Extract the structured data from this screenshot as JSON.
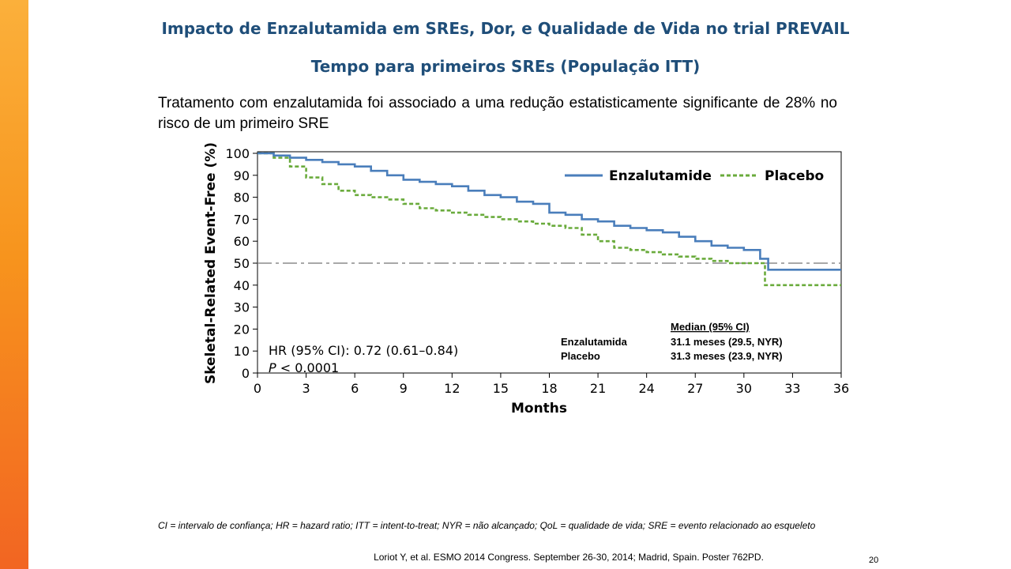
{
  "title": "Impacto de Enzalutamida em SREs, Dor, e Qualidade de Vida no trial PREVAIL",
  "subtitle": "Tempo para primeiros SREs  (População ITT)",
  "intro": "Tratamento com enzalutamida foi associado a uma redução estatisticamente significante de 28% no risco de um primeiro SRE",
  "footnote": "CI = intervalo de confiança; HR = hazard ratio; ITT = intent-to-treat; NYR = não alcançado; QoL = qualidade de vida; SRE = evento relacionado ao esqueleto",
  "citation": "Loriot Y, et al. ESMO 2014 Congress. September 26-30, 2014; Madrid, Spain. Poster 762PD.",
  "page_number": "20",
  "colors": {
    "accent_bar": "#f7941d",
    "title": "#1f4e79",
    "enzalutamide": "#4a7ebb",
    "placebo": "#6aab3c",
    "reference": "#8c8c8c"
  },
  "chart_data": {
    "type": "line",
    "xlabel": "Months",
    "ylabel": "Skeletal-Related Event-Free (%)",
    "xlim": [
      0,
      36
    ],
    "ylim": [
      0,
      100
    ],
    "xticks": [
      0,
      3,
      6,
      9,
      12,
      15,
      18,
      21,
      24,
      27,
      30,
      33,
      36
    ],
    "yticks": [
      0,
      10,
      20,
      30,
      40,
      50,
      60,
      70,
      80,
      90,
      100
    ],
    "reference_line_y": 50,
    "legend_position": "top-right",
    "hr_text": "HR (95% CI): 0.72 (0.61–0.84)",
    "p_label": "P",
    "p_value": "< 0.0001",
    "median_table": {
      "header": "Median (95% CI)",
      "rows": [
        {
          "name": "Enzalutamida",
          "value": "31.1 meses (29.5, NYR)"
        },
        {
          "name": "Placebo",
          "value": "31.3 meses (23.9, NYR)"
        }
      ]
    },
    "series": [
      {
        "name": "Enzalutamide",
        "style": "solid",
        "x": [
          0,
          1,
          2,
          3,
          4,
          5,
          6,
          7,
          8,
          9,
          10,
          11,
          12,
          13,
          14,
          15,
          16,
          17,
          18,
          19,
          20,
          21,
          22,
          23,
          24,
          25,
          26,
          27,
          28,
          29,
          30,
          31,
          31.5,
          32,
          33,
          34,
          35,
          36
        ],
        "y": [
          100,
          99,
          98,
          97,
          96,
          95,
          94,
          92,
          90,
          88,
          87,
          86,
          85,
          83,
          81,
          80,
          78,
          77,
          73,
          72,
          70,
          69,
          67,
          66,
          65,
          64,
          62,
          60,
          58,
          57,
          56,
          52,
          47,
          47,
          47,
          47,
          47,
          47
        ]
      },
      {
        "name": "Placebo",
        "style": "dashed",
        "x": [
          0,
          1,
          2,
          3,
          4,
          5,
          6,
          7,
          8,
          9,
          10,
          11,
          12,
          13,
          14,
          15,
          16,
          17,
          18,
          19,
          20,
          21,
          22,
          23,
          24,
          25,
          26,
          27,
          28,
          29,
          30,
          31,
          31.3,
          32,
          33,
          34,
          35,
          36
        ],
        "y": [
          100,
          98,
          94,
          89,
          86,
          83,
          81,
          80,
          79,
          77,
          75,
          74,
          73,
          72,
          71,
          70,
          69,
          68,
          67,
          66,
          63,
          60,
          57,
          56,
          55,
          54,
          53,
          52,
          51,
          50,
          50,
          50,
          40,
          40,
          40,
          40,
          40,
          40
        ]
      }
    ]
  }
}
